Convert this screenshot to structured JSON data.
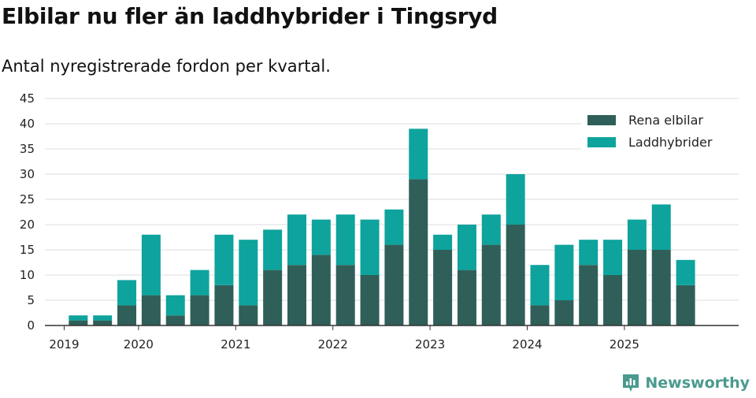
{
  "title": "Elbilar nu fler än laddhybrider i Tingsryd",
  "subtitle": "Antal nyregistrerade fordon per kvartal.",
  "brand": "Newsworthy",
  "colors": {
    "elbilar": "#2f5f58",
    "laddhybrider": "#0ea39d",
    "grid": "#dddddd",
    "axis": "#333333"
  },
  "chart_data": {
    "type": "bar",
    "stacked": true,
    "y_ticks": [
      "0",
      "5",
      "10",
      "15",
      "20",
      "25",
      "30",
      "35",
      "40",
      "45"
    ],
    "ylim": [
      0,
      45
    ],
    "x_tick_labels": [
      "2019",
      "2020",
      "2021",
      "2022",
      "2023",
      "2024",
      "2025"
    ],
    "categories": [
      "2019 Q1",
      "2019 Q2",
      "2019 Q3",
      "2019 Q4",
      "2020 Q1",
      "2020 Q2",
      "2020 Q3",
      "2020 Q4",
      "2021 Q1",
      "2021 Q2",
      "2021 Q3",
      "2021 Q4",
      "2022 Q1",
      "2022 Q2",
      "2022 Q3",
      "2022 Q4",
      "2023 Q1",
      "2023 Q2",
      "2023 Q3",
      "2023 Q4",
      "2024 Q1",
      "2024 Q2",
      "2024 Q3",
      "2024 Q4",
      "2025 Q1",
      "2025 Q2",
      "2025 Q3"
    ],
    "series": [
      {
        "name": "Rena elbilar",
        "values": [
          0,
          1,
          1,
          4,
          6,
          2,
          6,
          8,
          4,
          11,
          12,
          14,
          12,
          10,
          16,
          29,
          15,
          11,
          16,
          20,
          4,
          5,
          12,
          10,
          15,
          15,
          8
        ]
      },
      {
        "name": "Laddhybrider",
        "values": [
          0,
          1,
          1,
          5,
          12,
          4,
          5,
          10,
          13,
          8,
          10,
          7,
          10,
          11,
          7,
          10,
          3,
          9,
          6,
          10,
          8,
          11,
          5,
          7,
          6,
          9,
          5
        ]
      }
    ],
    "legend_position": "top-right",
    "grid": true
  }
}
